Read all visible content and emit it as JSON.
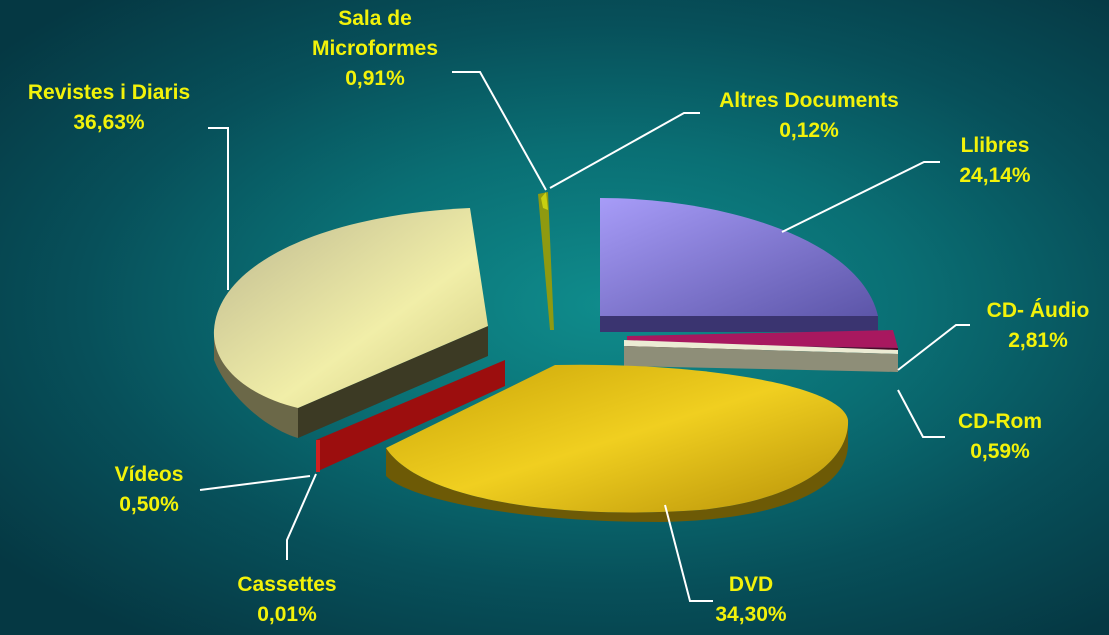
{
  "chart_data": {
    "type": "pie",
    "style": "3d-exploded",
    "slices": [
      {
        "label": "Llibres",
        "value": 24.14,
        "text": "24,14%",
        "color": "#8f86f2"
      },
      {
        "label": "CD- Áudio",
        "value": 2.81,
        "text": "2,81%",
        "color": "#9c1358"
      },
      {
        "label": "CD-Rom",
        "value": 0.59,
        "text": "0,59%",
        "color": "#dcdcc0"
      },
      {
        "label": "DVD",
        "value": 34.3,
        "text": "34,30%",
        "color": "#e6c410"
      },
      {
        "label": "Cassettes",
        "value": 0.01,
        "text": "0,01%",
        "color": "#b21414"
      },
      {
        "label": "Vídeos",
        "value": 0.5,
        "text": "0,50%",
        "color": "#a80e0e"
      },
      {
        "label": "Revistes i Diaris",
        "value": 36.63,
        "text": "36,63%",
        "color": "#ece89a"
      },
      {
        "label": "Sala de Microformes",
        "value": 0.91,
        "text": "0,91%",
        "color": "#8f9a10"
      },
      {
        "label": "Altres Documents",
        "value": 0.12,
        "text": "0,12%",
        "color": "#c8d010"
      }
    ]
  },
  "labels": {
    "llibres": {
      "name": "Llibres",
      "pct": "24,14%"
    },
    "cd_audio": {
      "name": "CD- Áudio",
      "pct": "2,81%"
    },
    "cd_rom": {
      "name": "CD-Rom",
      "pct": "0,59%"
    },
    "dvd": {
      "name": "DVD",
      "pct": "34,30%"
    },
    "cassettes": {
      "name": "Cassettes",
      "pct": "0,01%"
    },
    "videos": {
      "name": "Vídeos",
      "pct": "0,50%"
    },
    "revistes": {
      "name": "Revistes i Diaris",
      "pct": "36,63%"
    },
    "microformes": {
      "line1": "Sala de",
      "line2": "Microformes",
      "pct": "0,91%"
    },
    "altres": {
      "name": "Altres Documents",
      "pct": "0,12%"
    }
  },
  "colors": {
    "label_text": "#f2f20a",
    "leader_line": "#ffffff",
    "background": "#0a6f74"
  }
}
